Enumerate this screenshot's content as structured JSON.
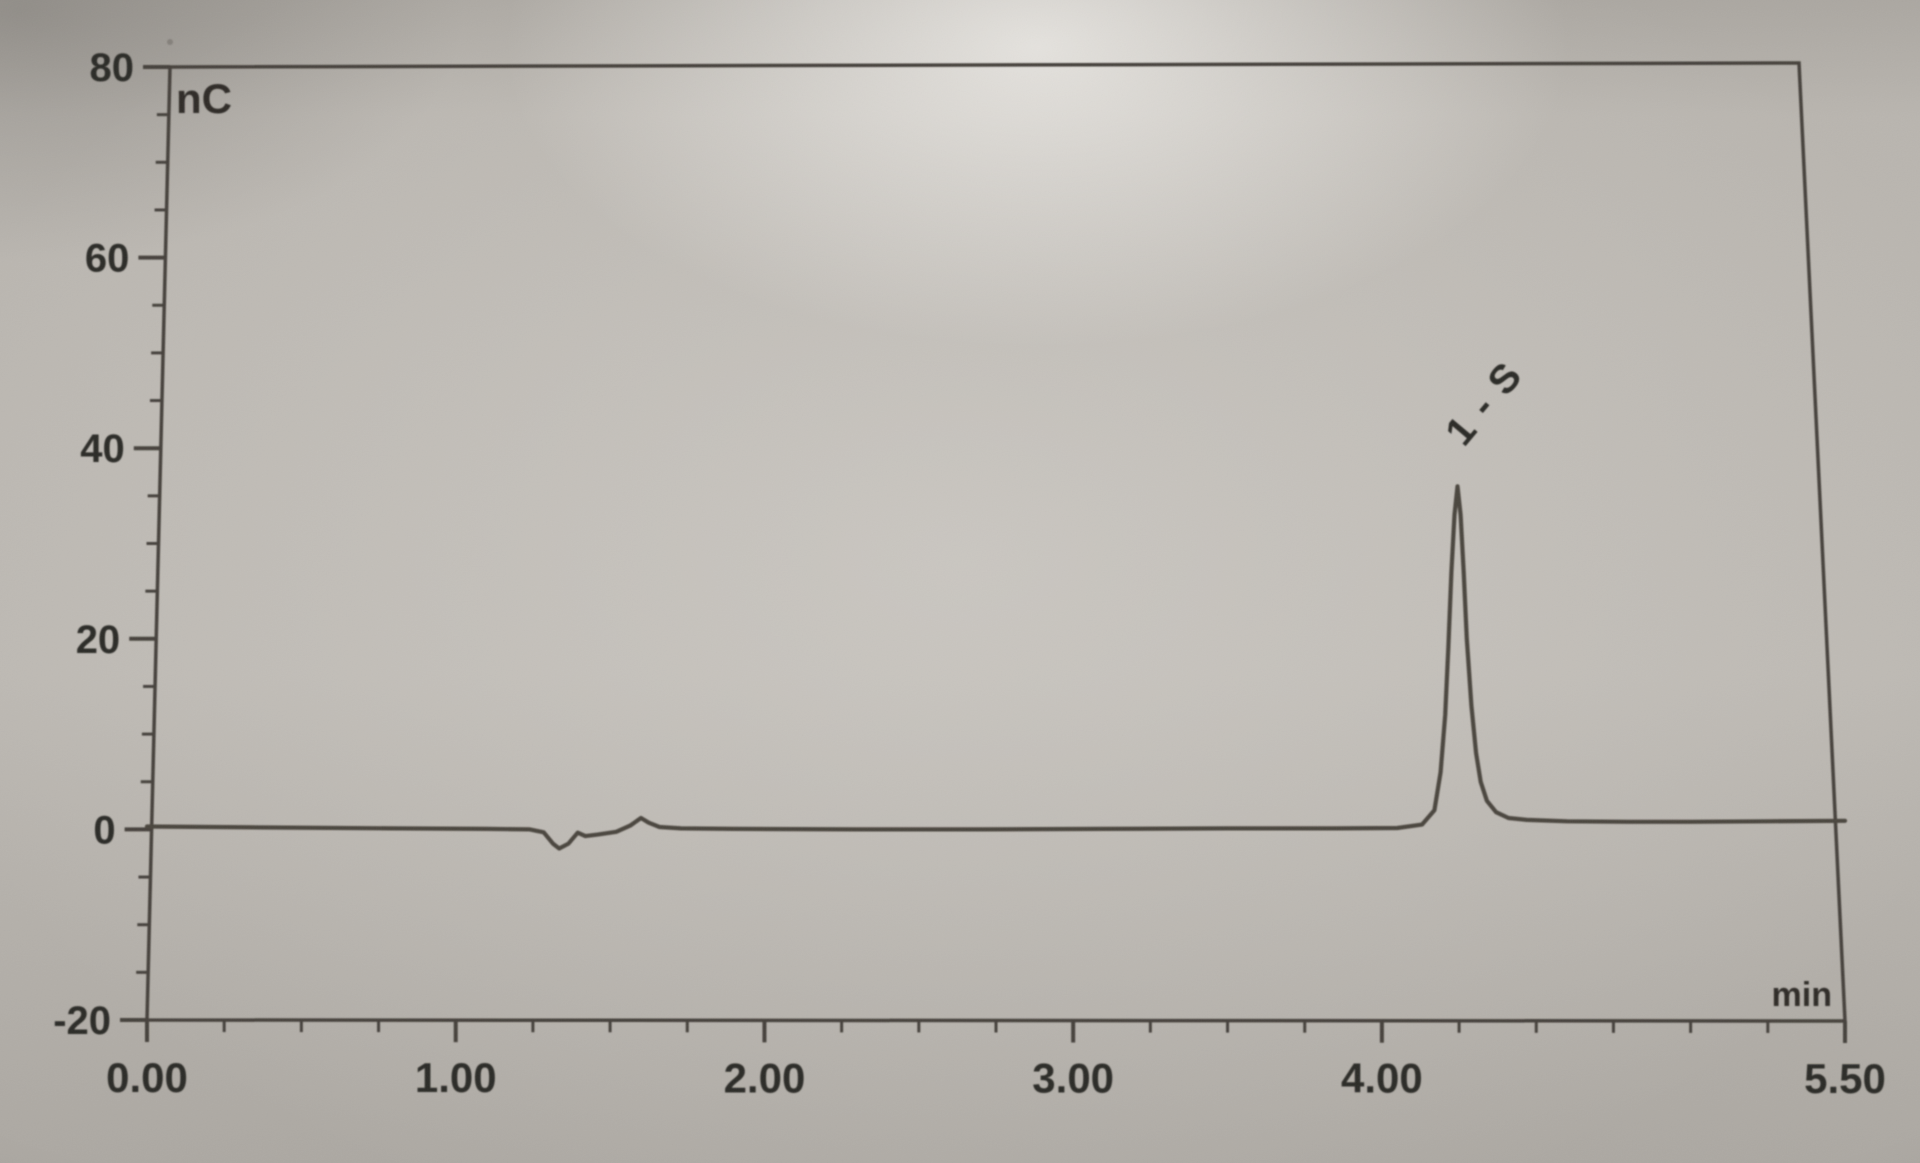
{
  "figure": {
    "description": "photographed chromatogram trace",
    "y_axis_unit": "nC",
    "x_axis_unit": "min"
  },
  "chart_data": {
    "type": "line",
    "title": "",
    "xlabel": "min",
    "ylabel": "nC",
    "xlabel_unit": "min",
    "ylabel_unit": "nC",
    "xlim": [
      0,
      5.5
    ],
    "ylim": [
      -20,
      80
    ],
    "grid": false,
    "legend": false,
    "x_major_ticks": [
      {
        "t": 0.0,
        "label": "0.00"
      },
      {
        "t": 1.0,
        "label": "1.00"
      },
      {
        "t": 2.0,
        "label": "2.00"
      },
      {
        "t": 3.0,
        "label": "3.00"
      },
      {
        "t": 4.0,
        "label": "4.00"
      },
      {
        "t": 5.5,
        "label": "5.50"
      }
    ],
    "x_minor_tick_step": 0.25,
    "y_major_ticks": [
      {
        "v": 80,
        "label": "80"
      },
      {
        "v": 60,
        "label": "60"
      },
      {
        "v": 40,
        "label": "40"
      },
      {
        "v": 20,
        "label": "20"
      },
      {
        "v": 0,
        "label": "0"
      },
      {
        "v": -20,
        "label": "-20"
      }
    ],
    "y_minor_tick_step": 5,
    "annotations": [
      {
        "type": "peak-label",
        "text": "1 - S",
        "x_min": 4.25,
        "y_nC": 36,
        "rotation_deg": -50
      }
    ],
    "peaks": [
      {
        "label": "1 - S",
        "retention_time_min": 4.25,
        "apex_height_nC": 36
      }
    ],
    "baseline_events": [
      {
        "t_min": 1.33,
        "y_nC": -2.0,
        "description": "small negative dip"
      },
      {
        "t_min": 1.6,
        "y_nC": 1.2,
        "description": "small positive blip"
      }
    ],
    "series": [
      {
        "name": "detector signal (nC)",
        "points": [
          [
            0.0,
            0.3
          ],
          [
            0.4,
            0.2
          ],
          [
            0.8,
            0.1
          ],
          [
            1.1,
            0.05
          ],
          [
            1.24,
            0.0
          ],
          [
            1.285,
            -0.3
          ],
          [
            1.315,
            -1.5
          ],
          [
            1.335,
            -2.0
          ],
          [
            1.365,
            -1.5
          ],
          [
            1.395,
            -0.35
          ],
          [
            1.42,
            -0.7
          ],
          [
            1.46,
            -0.55
          ],
          [
            1.52,
            -0.25
          ],
          [
            1.565,
            0.4
          ],
          [
            1.6,
            1.2
          ],
          [
            1.625,
            0.7
          ],
          [
            1.66,
            0.25
          ],
          [
            1.73,
            0.1
          ],
          [
            1.9,
            0.05
          ],
          [
            2.3,
            0.0
          ],
          [
            2.7,
            0.0
          ],
          [
            3.1,
            0.05
          ],
          [
            3.5,
            0.1
          ],
          [
            3.85,
            0.1
          ],
          [
            4.05,
            0.15
          ],
          [
            4.13,
            0.5
          ],
          [
            4.17,
            2.0
          ],
          [
            4.19,
            6.0
          ],
          [
            4.205,
            12
          ],
          [
            4.215,
            19
          ],
          [
            4.225,
            27
          ],
          [
            4.235,
            33
          ],
          [
            4.245,
            36
          ],
          [
            4.255,
            33
          ],
          [
            4.265,
            27
          ],
          [
            4.275,
            20
          ],
          [
            4.29,
            13
          ],
          [
            4.305,
            8
          ],
          [
            4.32,
            5
          ],
          [
            4.34,
            3
          ],
          [
            4.37,
            1.8
          ],
          [
            4.41,
            1.2
          ],
          [
            4.47,
            1.0
          ],
          [
            4.6,
            0.85
          ],
          [
            4.8,
            0.8
          ],
          [
            5.0,
            0.8
          ],
          [
            5.25,
            0.85
          ],
          [
            5.5,
            0.9
          ]
        ]
      }
    ]
  },
  "colors": {
    "photo_background": "#b6b2ac",
    "trace": "#4a443c",
    "axis": "#45413b",
    "text": "#2b2925"
  }
}
